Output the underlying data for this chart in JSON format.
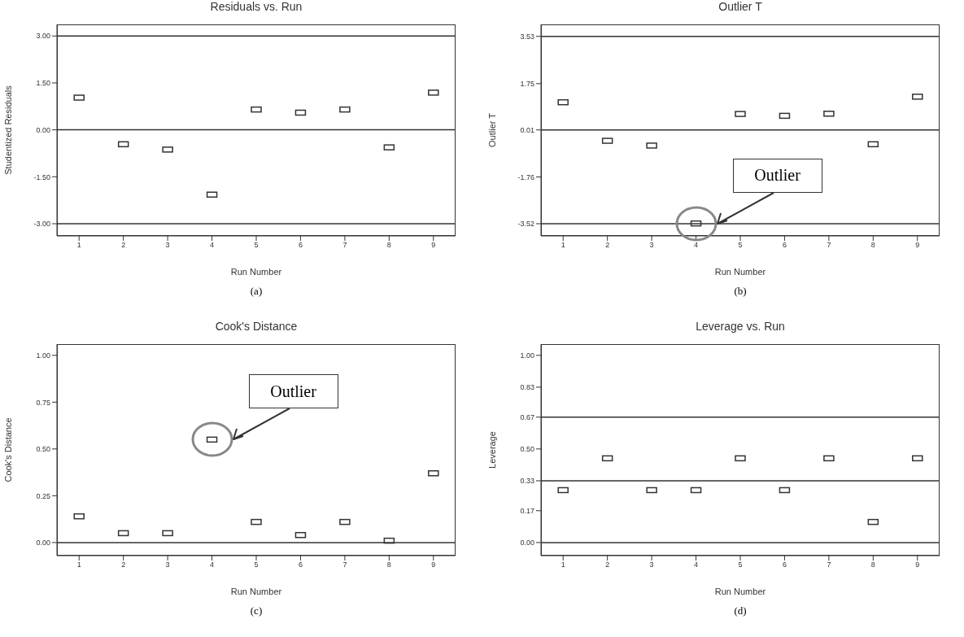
{
  "chart_data": [
    {
      "type": "scatter",
      "title": "Residuals vs. Run",
      "xlabel": "Run Number",
      "ylabel": "Studentized Residuals",
      "x": [
        1,
        2,
        3,
        4,
        5,
        6,
        7,
        8,
        9
      ],
      "values": [
        1.03,
        -0.46,
        -0.63,
        -2.07,
        0.65,
        0.55,
        0.65,
        -0.56,
        1.19
      ],
      "color": "#333333",
      "marker": "square",
      "xlim": [
        0.5,
        9.5
      ],
      "xticks": [
        1,
        2,
        3,
        4,
        5,
        6,
        7,
        8,
        9
      ],
      "ylim": [
        -3.39,
        3.37
      ],
      "yticks": [
        {
          "value": -3,
          "label": "-3.00"
        },
        {
          "value": -1.5,
          "label": "-1.50"
        },
        {
          "value": 0,
          "label": "0.00"
        },
        {
          "value": 1.5,
          "label": "1.50"
        },
        {
          "value": 3,
          "label": "3.00"
        }
      ],
      "ref_lines": [
        {
          "axis": "y",
          "value": 3
        },
        {
          "axis": "y",
          "value": 0
        },
        {
          "axis": "y",
          "value": -3
        }
      ],
      "annotations": [
        "(a)"
      ]
    },
    {
      "type": "scatter",
      "title": "Outlier T",
      "xlabel": "Run Number",
      "ylabel": "Outlier T",
      "x": [
        1,
        2,
        3,
        4,
        5,
        6,
        7,
        8,
        9
      ],
      "values": [
        1.05,
        -0.4,
        -0.58,
        -3.51,
        0.61,
        0.54,
        0.62,
        -0.53,
        1.26
      ],
      "color": "#333333",
      "marker": "square",
      "xlim": [
        0.5,
        9.5
      ],
      "xticks": [
        1,
        2,
        3,
        4,
        5,
        6,
        7,
        8,
        9
      ],
      "ylim": [
        -3.98,
        3.98
      ],
      "yticks": [
        -3.52,
        -1.76,
        0.01,
        1.75,
        3.53
      ],
      "ref_lines": [
        {
          "axis": "y",
          "value": 3.53
        },
        {
          "axis": "y",
          "value": 0.01
        },
        {
          "axis": "y",
          "value": -3.52
        }
      ],
      "annotations": [
        "Outlier",
        "(b)"
      ]
    },
    {
      "type": "scatter",
      "title": "Cook's Distance",
      "xlabel": "Run Number",
      "ylabel": "Cook's Distance",
      "x": [
        1,
        2,
        3,
        4,
        5,
        6,
        7,
        8,
        9
      ],
      "values": [
        0.14,
        0.05,
        0.05,
        0.55,
        0.11,
        0.04,
        0.11,
        0.01,
        0.37
      ],
      "color": "#333333",
      "marker": "square",
      "xlim": [
        0.5,
        9.5
      ],
      "xticks": [
        1,
        2,
        3,
        4,
        5,
        6,
        7,
        8,
        9
      ],
      "ylim": [
        -0.07,
        1.06
      ],
      "yticks": [
        {
          "value": 0,
          "label": "0.00"
        },
        {
          "value": 0.25,
          "label": "0.25"
        },
        {
          "value": 0.5,
          "label": "0.50"
        },
        {
          "value": 0.75,
          "label": "0.75"
        },
        {
          "value": 1,
          "label": "1.00"
        }
      ],
      "ref_lines": [
        {
          "axis": "y",
          "value": 0
        }
      ],
      "annotations": [
        "Outlier",
        "(c)"
      ]
    },
    {
      "type": "scatter",
      "title": "Leverage vs. Run",
      "xlabel": "Run Number",
      "ylabel": "Leverage",
      "x": [
        1,
        2,
        3,
        4,
        5,
        6,
        7,
        8,
        9
      ],
      "values": [
        0.28,
        0.45,
        0.28,
        0.28,
        0.45,
        0.28,
        0.45,
        0.11,
        0.45
      ],
      "color": "#333333",
      "marker": "square",
      "xlim": [
        0.5,
        9.5
      ],
      "xticks": [
        1,
        2,
        3,
        4,
        5,
        6,
        7,
        8,
        9
      ],
      "ylim": [
        -0.07,
        1.06
      ],
      "yticks": [
        {
          "value": 0,
          "label": "0.00"
        },
        0.17,
        0.33,
        {
          "value": 0.5,
          "label": "0.50"
        },
        0.67,
        0.83,
        {
          "value": 1,
          "label": "1.00"
        }
      ],
      "ref_lines": [
        {
          "axis": "y",
          "value": 0.67
        },
        {
          "axis": "y",
          "value": 0.33
        },
        {
          "axis": "y",
          "value": 0
        }
      ],
      "annotations": [
        "(d)"
      ]
    }
  ]
}
